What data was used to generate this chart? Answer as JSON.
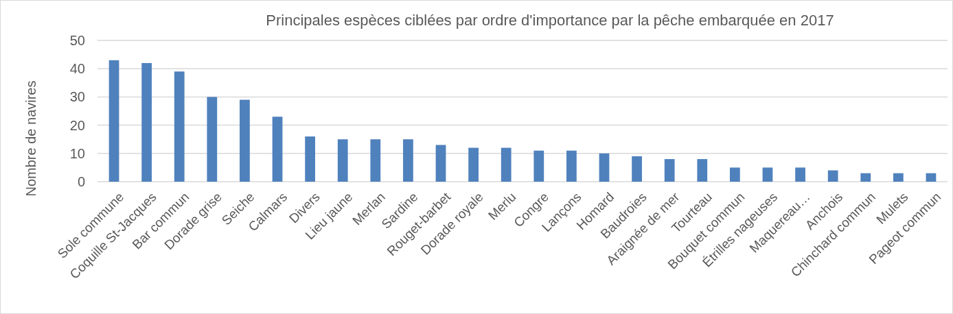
{
  "chart_data": {
    "type": "bar",
    "title": "Principales espèces ciblées par ordre d'importance par la pêche embarquée en 2017",
    "ylabel": "Nombre de navires",
    "categories": [
      "Sole commune",
      "Coquille St-Jacques",
      "Bar commun",
      "Dorade grise",
      "Seiche",
      "Calmars",
      "Divers",
      "Lieu jaune",
      "Merlan",
      "Sardine",
      "Rouget-barbet",
      "Dorade royale",
      "Merlu",
      "Congre",
      "Lançons",
      "Homard",
      "Baudroies",
      "Araignée de mer",
      "Tourteau",
      "Bouquet commun",
      "Étrilles nageuses",
      "Maquereau…",
      "Anchois",
      "Chinchard commun",
      "Mulets",
      "Pageot commun"
    ],
    "values": [
      43,
      42,
      39,
      30,
      29,
      23,
      16,
      15,
      15,
      15,
      13,
      12,
      12,
      11,
      11,
      10,
      9,
      8,
      8,
      5,
      5,
      5,
      4,
      3,
      3,
      3
    ],
    "color": "#4f81bd",
    "ylim": [
      0,
      50
    ],
    "yticks": [
      0,
      10,
      20,
      30,
      40,
      50
    ],
    "grid": "y"
  }
}
